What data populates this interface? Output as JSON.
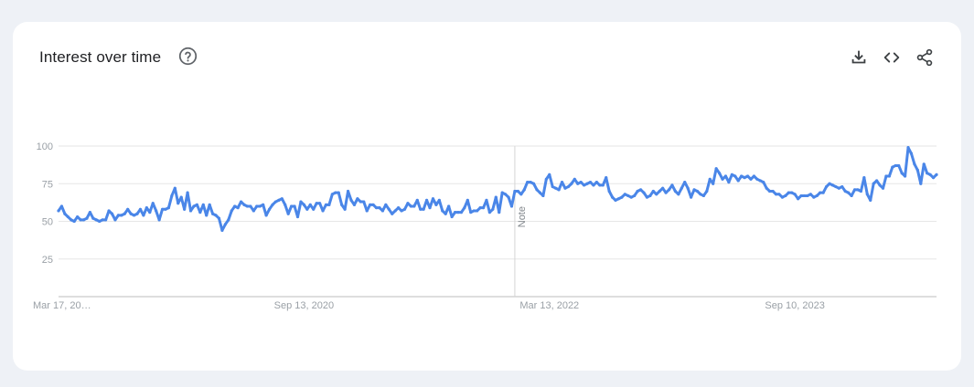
{
  "header": {
    "title": "Interest over time",
    "help_icon": "help-circle-icon",
    "actions": [
      {
        "name": "download",
        "icon": "download-icon"
      },
      {
        "name": "embed",
        "icon": "code-icon"
      },
      {
        "name": "share",
        "icon": "share-icon"
      }
    ]
  },
  "colors": {
    "line": "#4a86e8",
    "grid": "#e6e6e6",
    "tick_text": "#9aa0a6",
    "axis": "#bdbdbd"
  },
  "chart_data": {
    "type": "line",
    "title": "Interest over time",
    "xlabel": "",
    "ylabel": "",
    "ylim": [
      0,
      100
    ],
    "y_ticks": [
      25,
      50,
      75,
      100
    ],
    "x_tick_labels": [
      "Mar 17, 20…",
      "Sep 13, 2020",
      "Mar 13, 2022",
      "Sep 10, 2023"
    ],
    "x_tick_positions_week": [
      0,
      78,
      156,
      234
    ],
    "note": {
      "label": "Note",
      "week": 145
    },
    "grid": true,
    "legend": "none",
    "x_start": "Mar 17, 2019",
    "x_unit": "week",
    "series": [
      {
        "values": [
          57,
          60,
          55,
          53,
          51,
          50,
          53,
          51,
          51,
          52,
          56,
          52,
          51,
          50,
          51,
          51,
          57,
          55,
          51,
          54,
          54,
          55,
          58,
          55,
          54,
          55,
          58,
          54,
          59,
          56,
          62,
          57,
          51,
          58,
          58,
          59,
          67,
          72,
          62,
          66,
          58,
          69,
          57,
          60,
          61,
          56,
          61,
          54,
          61,
          55,
          54,
          52,
          44,
          48,
          51,
          57,
          60,
          59,
          63,
          61,
          60,
          60,
          57,
          60,
          60,
          61,
          54,
          58,
          61,
          63,
          64,
          65,
          61,
          55,
          60,
          60,
          53,
          63,
          61,
          58,
          61,
          58,
          62,
          62,
          57,
          61,
          61,
          68,
          69,
          69,
          61,
          58,
          70,
          64,
          61,
          65,
          63,
          63,
          57,
          61,
          61,
          59,
          59,
          57,
          61,
          58,
          55,
          57,
          59,
          57,
          58,
          62,
          60,
          60,
          64,
          58,
          58,
          64,
          59,
          65,
          61,
          64,
          57,
          55,
          60,
          53,
          56,
          56,
          56,
          59,
          64,
          56,
          57,
          57,
          59,
          59,
          64,
          56,
          58,
          66,
          56,
          69,
          68,
          66,
          60,
          70,
          70,
          68,
          71,
          76,
          76,
          75,
          71,
          69,
          67,
          78,
          81,
          73,
          72,
          71,
          76,
          72,
          73,
          75,
          78,
          75,
          76,
          74,
          75,
          76,
          74,
          76,
          74,
          74,
          79,
          70,
          66,
          64,
          65,
          66,
          68,
          67,
          66,
          67,
          70,
          71,
          69,
          66,
          67,
          70,
          68,
          70,
          72,
          69,
          71,
          74,
          70,
          68,
          72,
          76,
          72,
          66,
          71,
          70,
          68,
          67,
          70,
          78,
          75,
          85,
          82,
          78,
          80,
          76,
          81,
          80,
          77,
          80,
          79,
          80,
          78,
          80,
          78,
          77,
          76,
          72,
          70,
          70,
          68,
          68,
          66,
          67,
          69,
          69,
          68,
          65,
          67,
          67,
          67,
          68,
          66,
          67,
          69,
          69,
          73,
          75,
          74,
          73,
          72,
          73,
          70,
          69,
          67,
          71,
          71,
          70,
          79,
          68,
          64,
          75,
          77,
          74,
          72,
          80,
          80,
          86,
          87,
          87,
          82,
          80,
          99,
          95,
          88,
          84,
          75,
          88,
          82,
          81,
          79,
          81
        ]
      }
    ]
  }
}
